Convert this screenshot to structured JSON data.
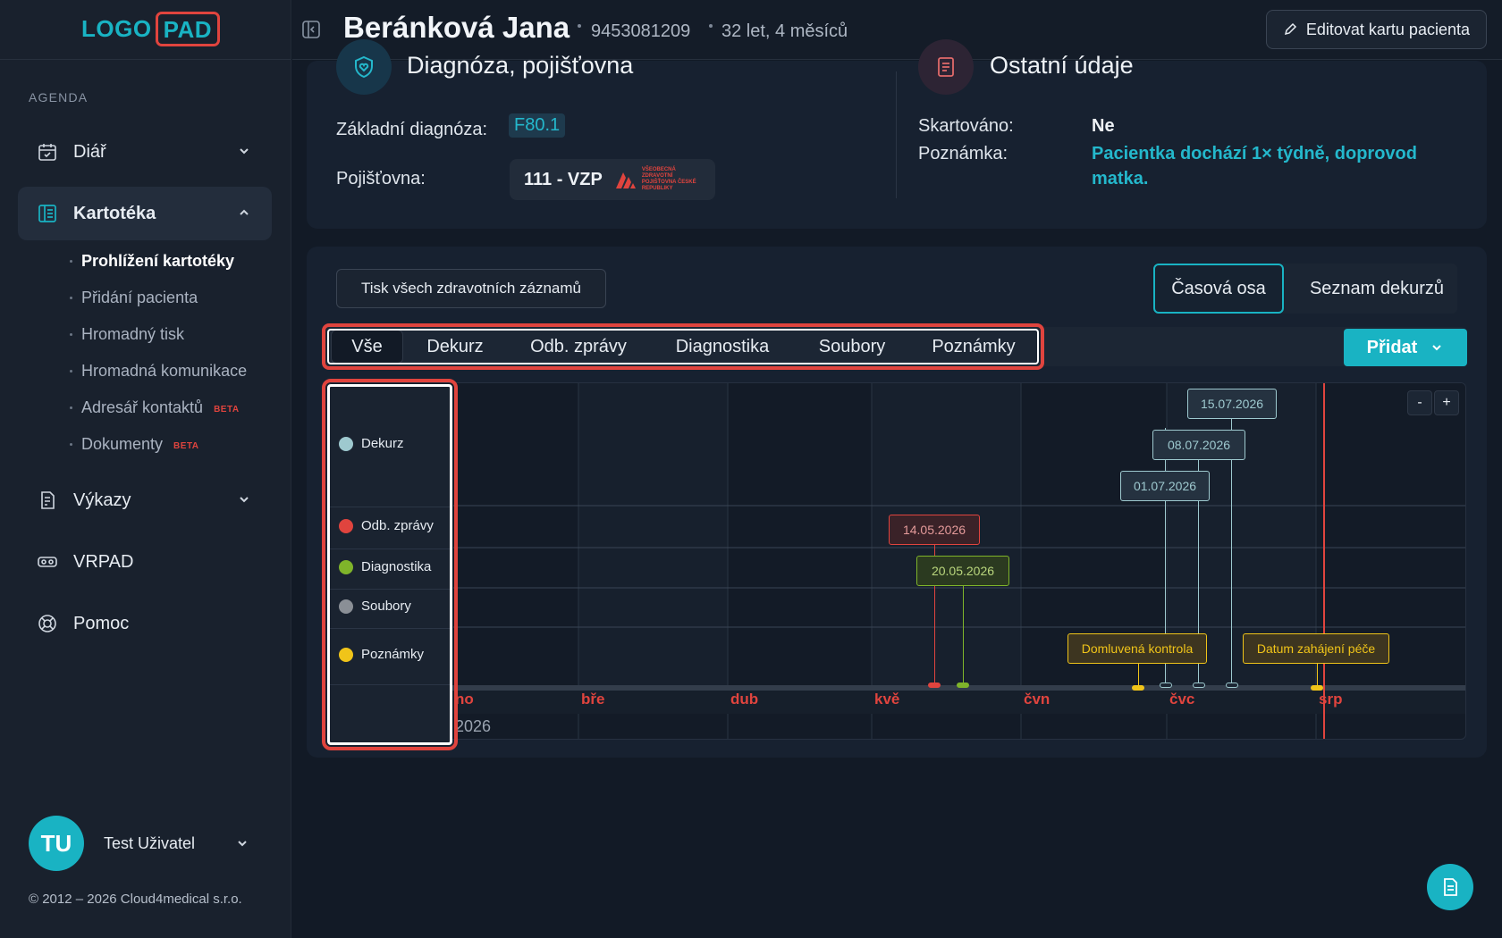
{
  "app": {
    "logo_left": "LOGO",
    "logo_right": "PAD",
    "accent": "#19b3c3",
    "highlight": "#e0443e"
  },
  "sidebar": {
    "section_label": "AGENDA",
    "items": [
      {
        "label": "Diář",
        "icon": "calendar-icon"
      },
      {
        "label": "Kartotéka",
        "icon": "book-icon"
      },
      {
        "label": "Výkazy",
        "icon": "report-icon"
      },
      {
        "label": "VRPAD",
        "icon": "vr-headset-icon"
      },
      {
        "label": "Pomoc",
        "icon": "lifebuoy-icon"
      }
    ],
    "subitems": [
      {
        "label": "Prohlížení kartotéky"
      },
      {
        "label": "Přidání pacienta"
      },
      {
        "label": "Hromadný tisk"
      },
      {
        "label": "Hromadná komunikace"
      },
      {
        "label": "Adresář kontaktů",
        "badge": "BETA"
      },
      {
        "label": "Dokumenty",
        "badge": "BETA"
      }
    ],
    "user": {
      "initials": "TU",
      "name": "Test Uživatel"
    },
    "copyright": "© 2012 – 2026 Cloud4medical s.r.o."
  },
  "header": {
    "patient_name": "Beránková Jana",
    "patient_id": "9453081209",
    "patient_age": "32 let, 4 měsíců",
    "edit_button": "Editovat kartu pacienta"
  },
  "diagnosis": {
    "title": "Diagnóza, pojišťovna",
    "base_label": "Základní diagnóza:",
    "base_value": "F80.1",
    "insurance_label": "Pojišťovna:",
    "insurance_value": "111 - VZP",
    "insurance_logo_text": "VŠEOBECNÁ ZDRAVOTNÍ POJIŠŤOVNA ČESKÉ REPUBLIKY"
  },
  "other": {
    "title": "Ostatní údaje",
    "shredded_label": "Skartováno:",
    "shredded_value": "Ne",
    "note_label": "Poznámka:",
    "note_value_line1": "Pacientka dochází 1× týdně, doprovod",
    "note_value_line2": "matka."
  },
  "records": {
    "print_all": "Tisk všech zdravotních záznamů",
    "view_tabs": [
      "Časová osa",
      "Seznam dekurzů"
    ],
    "filter_tabs": [
      "Vše",
      "Dekurz",
      "Odb. zprávy",
      "Diagnostika",
      "Soubory",
      "Poznámky"
    ],
    "add_button": "Přidat"
  },
  "timeline": {
    "legend": [
      {
        "label": "Dekurz",
        "color": "#9ec9cf"
      },
      {
        "label": "Odb. zprávy",
        "color": "#e0443e"
      },
      {
        "label": "Diagnostika",
        "color": "#7fb42a"
      },
      {
        "label": "Soubory",
        "color": "#8a8f96"
      },
      {
        "label": "Poznámky",
        "color": "#f0c419"
      }
    ],
    "months": [
      "no",
      "bře",
      "dub",
      "kvě",
      "čvn",
      "čvc",
      "srp"
    ],
    "year": "2026",
    "zoom_out": "-",
    "zoom_in": "+",
    "events": {
      "dekurz": [
        "15.07.2026",
        "08.07.2026",
        "01.07.2026"
      ],
      "odb": "14.05.2026",
      "diag": "20.05.2026",
      "note1": "Domluvená kontrola",
      "note2": "Datum zahájení péče"
    }
  }
}
